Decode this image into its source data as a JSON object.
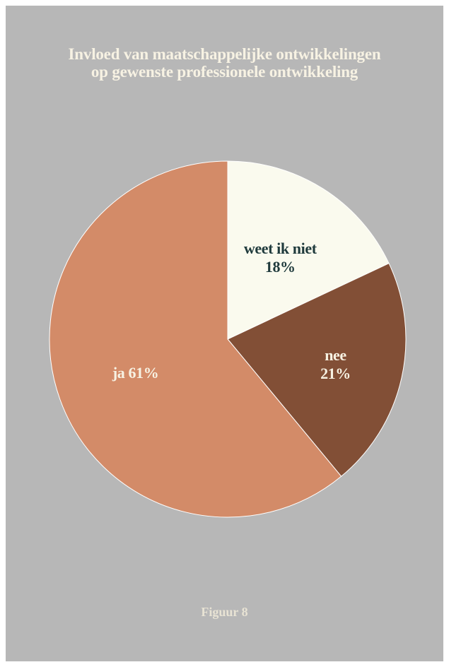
{
  "chart_data": {
    "type": "pie",
    "title_lines": [
      "Invloed van maatschappelijke ontwikkelingen",
      "op gewenste professionele ontwikkeling"
    ],
    "slices": [
      {
        "label": "weet ik niet",
        "value": 18,
        "display": "18%",
        "color": "#fafaee",
        "text_color": "#1f3a3c"
      },
      {
        "label": "nee",
        "value": 21,
        "display": "21%",
        "color": "#824f36",
        "text_color": "#f7f2e3"
      },
      {
        "label": "ja",
        "value": 61,
        "display": "61%",
        "color": "#d38b68",
        "text_color": "#f7f2e3"
      }
    ],
    "start": "top",
    "direction": "clockwise"
  },
  "caption": "Figuur 8",
  "colors": {
    "background": "#b7b7b7",
    "title": "#f7f2e3",
    "slice_border": "#ffffff"
  }
}
